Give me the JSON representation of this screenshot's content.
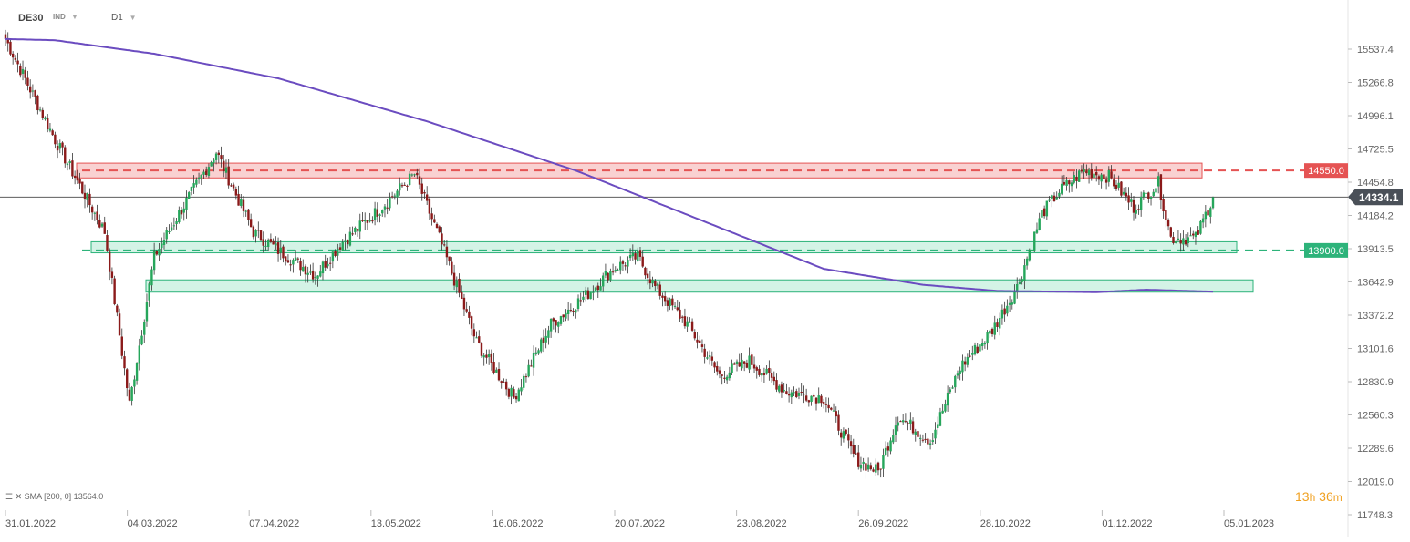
{
  "header": {
    "symbol": "DE30",
    "instrument_type": "IND",
    "timeframe": "D1",
    "caret_icon": "chevron-down-icon"
  },
  "indicator_legend": {
    "text": "SMA [200, 0]  13564.0",
    "icon": "indicator-list-icon"
  },
  "timer": {
    "hours": "13",
    "h_unit": "h",
    "minutes": "36",
    "m_unit": "m"
  },
  "colors": {
    "bull": "#26a65b",
    "bear": "#8b1a1a",
    "sma": "#6b4cc0",
    "resistance": "#e55353",
    "support": "#2db37a",
    "price_line": "#444444"
  },
  "chart_data": {
    "type": "candlestick",
    "y_ticks": [
      "15537.4",
      "15266.8",
      "14996.1",
      "14725.5",
      "14454.8",
      "14184.2",
      "13913.5",
      "13642.9",
      "13372.2",
      "13101.6",
      "12830.9",
      "12560.3",
      "12289.6",
      "12019.0",
      "11748.3"
    ],
    "x_ticks": [
      "31.01.2022",
      "04.03.2022",
      "07.04.2022",
      "13.05.2022",
      "16.06.2022",
      "20.07.2022",
      "23.08.2022",
      "26.09.2022",
      "28.10.2022",
      "01.12.2022",
      "05.01.2023"
    ],
    "ylim": [
      11748.3,
      15808.1
    ],
    "current_price": "14334.1",
    "levels": [
      {
        "label": "14550.0",
        "value": 14550.0,
        "kind": "resistance"
      },
      {
        "label": "13900.0",
        "value": 13900.0,
        "kind": "support"
      }
    ],
    "zones": [
      {
        "kind": "resistance",
        "low": 14490,
        "high": 14610
      },
      {
        "kind": "support",
        "low": 13880,
        "high": 13970
      },
      {
        "kind": "support",
        "low": 13560,
        "high": 13660
      }
    ],
    "sma": {
      "name": "SMA [200, 0]",
      "last": 13564.0
    }
  }
}
